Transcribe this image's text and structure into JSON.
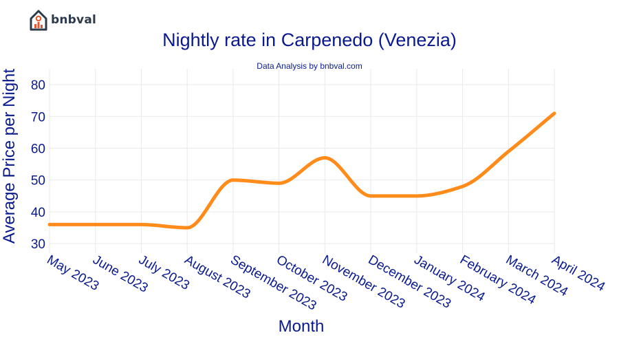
{
  "brand": {
    "name": "bnbval"
  },
  "colors": {
    "line": "#ff8c1a",
    "text": "#0a1a8c",
    "grid": "#e9e9e9",
    "logo": "#2b3a4a",
    "logo_accent": "#e8542f"
  },
  "chart_data": {
    "type": "line",
    "title": "Nightly rate in Carpenedo (Venezia)",
    "subtitle": "Data Analysis by bnbval.com",
    "xlabel": "Month",
    "ylabel": "Average Price per Night",
    "categories": [
      "May 2023",
      "June 2023",
      "July 2023",
      "August 2023",
      "September 2023",
      "October 2023",
      "November 2023",
      "December 2023",
      "January 2024",
      "February 2024",
      "March 2024",
      "April 2024"
    ],
    "series": [
      {
        "name": "Average Price per Night",
        "values": [
          36,
          36,
          36,
          35,
          50,
          49,
          57,
          45,
          45,
          48,
          59,
          71
        ]
      }
    ],
    "yticks": [
      30,
      40,
      50,
      60,
      70,
      80
    ],
    "ylim": [
      27,
      85
    ],
    "grid": true,
    "legend": "none"
  }
}
